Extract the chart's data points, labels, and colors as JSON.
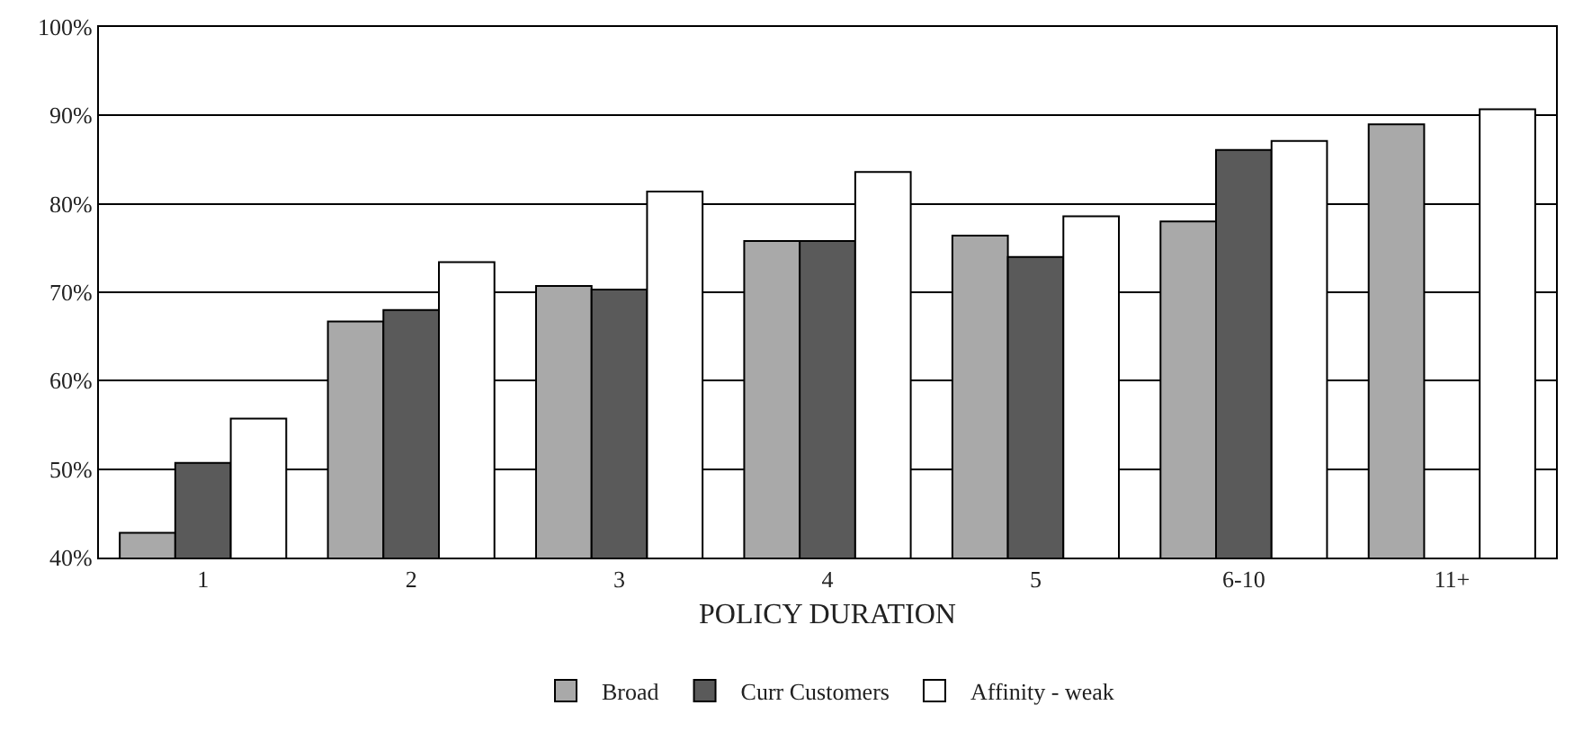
{
  "chart_data": {
    "type": "bar",
    "xlabel": "POLICY DURATION",
    "categories": [
      "1",
      "2",
      "3",
      "4",
      "5",
      "6-10",
      "11+"
    ],
    "series": [
      {
        "name": "Broad",
        "color": "#a9a9a9",
        "values": [
          42.8,
          66.7,
          70.7,
          75.8,
          76.4,
          78.0,
          89.0
        ]
      },
      {
        "name": "Curr Customers",
        "color": "#5a5a5a",
        "values": [
          50.7,
          68.0,
          70.3,
          75.8,
          74.0,
          86.1,
          null
        ]
      },
      {
        "name": "Affinity - weak",
        "color": "#ffffff",
        "values": [
          55.7,
          73.4,
          81.4,
          83.6,
          78.6,
          87.1,
          90.7
        ]
      }
    ],
    "ylim": [
      40,
      100
    ],
    "yticks": [
      {
        "value": 40,
        "label": "40%"
      },
      {
        "value": 50,
        "label": "50%"
      },
      {
        "value": 60,
        "label": "60%"
      },
      {
        "value": 70,
        "label": "70%"
      },
      {
        "value": 80,
        "label": "80%"
      },
      {
        "value": 90,
        "label": "90%"
      },
      {
        "value": 100,
        "label": "100%"
      }
    ],
    "grid": "y",
    "legend": "bottom"
  }
}
